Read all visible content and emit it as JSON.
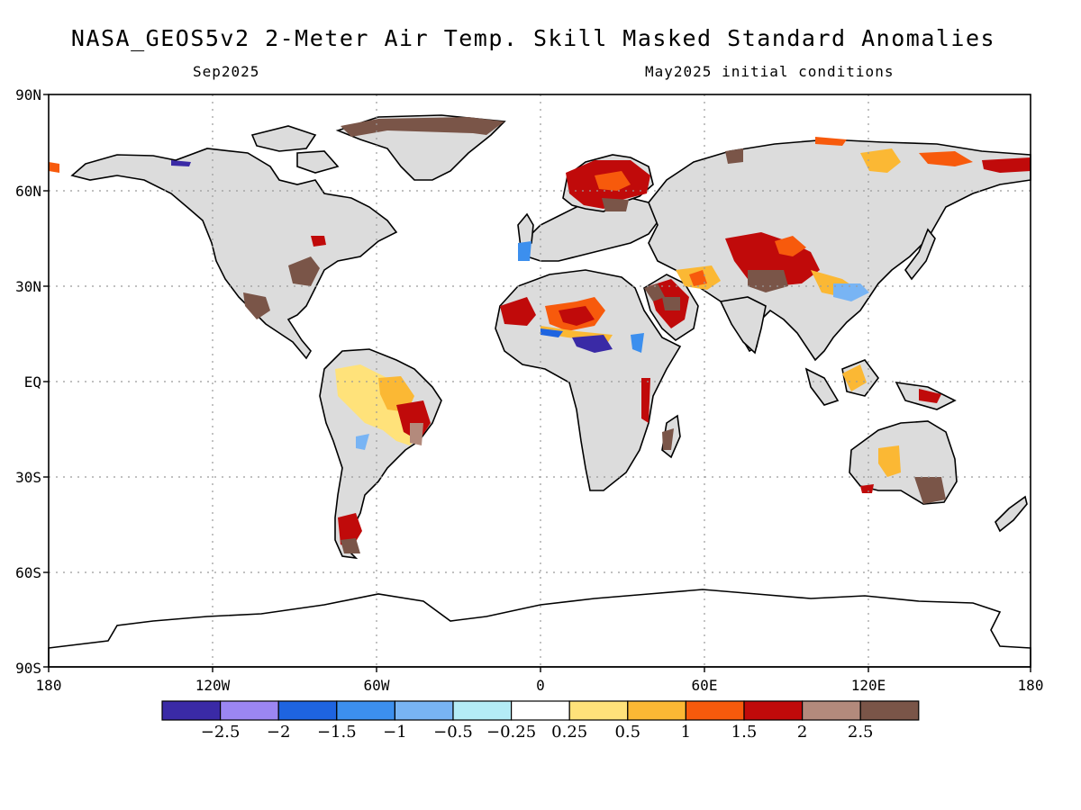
{
  "title": "NASA_GEOS5v2 2-Meter Air Temp. Skill Masked Standard Anomalies",
  "subtitle_left": "Sep2025",
  "subtitle_right": "May2025 initial conditions",
  "lat_labels": [
    "90N",
    "60N",
    "30N",
    "EQ",
    "30S",
    "60S",
    "90S"
  ],
  "lon_labels": [
    "180",
    "120W",
    "60W",
    "0",
    "60E",
    "120E",
    "180"
  ],
  "colorbar": {
    "colors": [
      "#3a2aa6",
      "#9b86f2",
      "#1e64e0",
      "#3c8fee",
      "#78b4f4",
      "#b4ecf6",
      "#ffffff",
      "#ffe27a",
      "#fbb834",
      "#f75a0c",
      "#c00a0a",
      "#b38a7c",
      "#7a5548"
    ],
    "tick_labels": [
      "-2.5",
      "-2",
      "-1.5",
      "-1",
      "-0.5",
      "-0.25",
      "0.25",
      "0.5",
      "1",
      "1.5",
      "2",
      "2.5"
    ]
  },
  "map_colors": {
    "land": "#dcdcdc",
    "coast": "#000000",
    "grid": "#9a9a9a"
  }
}
